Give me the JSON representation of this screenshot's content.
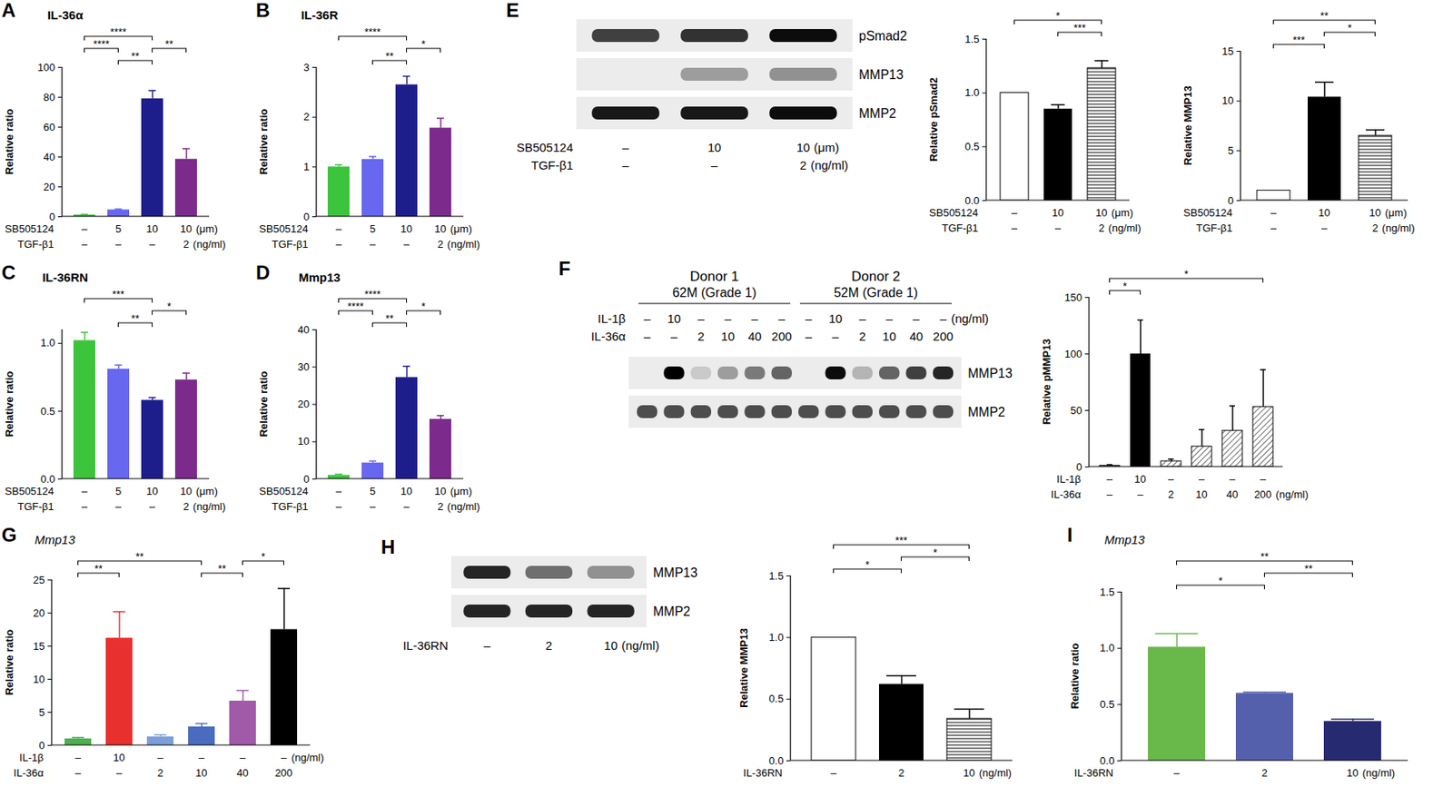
{
  "chart_data": [
    {
      "type": "bar",
      "panel": "A",
      "title": "IL-36α",
      "ylabel": "Relative ratio",
      "categories": [
        null,
        null,
        null,
        null
      ],
      "values": [
        1.2,
        4.6,
        79,
        38.5
      ],
      "errors": [
        0.4,
        0.5,
        5.5,
        7
      ],
      "colors": [
        "#3cc43c",
        "#6767f0",
        "#1d1d8c",
        "#7d2a8d"
      ],
      "ylim": [
        0,
        100
      ],
      "yticks": [
        0,
        20,
        40,
        60,
        80,
        100
      ],
      "tick_labels": "y",
      "conditions": [
        {
          "name": "SB505124",
          "labels": [
            "–",
            "5",
            "10",
            "10"
          ],
          "unit": "(μm)"
        },
        {
          "name": "TGF-β1",
          "labels": [
            "–",
            "–",
            "–",
            "2"
          ],
          "unit": "(ng/ml)"
        }
      ],
      "significance": [
        {
          "from": 0,
          "to": 2,
          "label": "****"
        },
        {
          "from": 1,
          "to": 2,
          "label": "**"
        },
        {
          "from": 0,
          "to": 1,
          "label": "****"
        },
        {
          "from": 2,
          "to": 3,
          "label": "**"
        }
      ]
    },
    {
      "type": "bar",
      "panel": "B",
      "title": "IL-36R",
      "ylabel": "Relative ratio",
      "categories": [
        null,
        null,
        null,
        null
      ],
      "values": [
        1.0,
        1.15,
        2.65,
        1.78
      ],
      "errors": [
        0.04,
        0.06,
        0.17,
        0.2
      ],
      "colors": [
        "#3cc43c",
        "#6767f0",
        "#1d1d8c",
        "#7d2a8d"
      ],
      "ylim": [
        0,
        3
      ],
      "yticks": [
        0,
        1,
        2,
        3
      ],
      "tick_labels": "y",
      "conditions": [
        {
          "name": "SB505124",
          "labels": [
            "–",
            "5",
            "10",
            "10"
          ],
          "unit": "(μm)"
        },
        {
          "name": "TGF-β1",
          "labels": [
            "–",
            "–",
            "–",
            "2"
          ],
          "unit": "(ng/ml)"
        }
      ],
      "significance": [
        {
          "from": 0,
          "to": 2,
          "label": "****"
        },
        {
          "from": 1,
          "to": 2,
          "label": "**"
        },
        {
          "from": 2,
          "to": 3,
          "label": "*"
        }
      ]
    },
    {
      "type": "bar",
      "panel": "C",
      "title": "IL-36RN",
      "ylabel": "Relative ratio",
      "categories": [
        null,
        null,
        null,
        null
      ],
      "values": [
        1.02,
        0.81,
        0.58,
        0.73
      ],
      "errors": [
        0.06,
        0.03,
        0.02,
        0.05
      ],
      "colors": [
        "#3cc43c",
        "#6767f0",
        "#1d1d8c",
        "#7d2a8d"
      ],
      "ylim": [
        0,
        1.1
      ],
      "yticks": [
        {
          "value": 0,
          "label": "0.0"
        },
        0.5,
        {
          "value": 1,
          "label": "1.0"
        }
      ],
      "tick_labels": "y",
      "conditions": [
        {
          "name": "SB505124",
          "labels": [
            "–",
            "5",
            "10",
            "10"
          ],
          "unit": "(μm)"
        },
        {
          "name": "TGF-β1",
          "labels": [
            "–",
            "–",
            "–",
            "2"
          ],
          "unit": "(ng/ml)"
        }
      ],
      "significance": [
        {
          "from": 0,
          "to": 2,
          "label": "***"
        },
        {
          "from": 1,
          "to": 2,
          "label": "**"
        },
        {
          "from": 2,
          "to": 3,
          "label": "*"
        }
      ]
    },
    {
      "type": "bar",
      "panel": "D",
      "title": "Mmp13",
      "ylabel": "Relative ratio",
      "categories": [
        null,
        null,
        null,
        null
      ],
      "values": [
        1,
        4.3,
        27.2,
        16
      ],
      "errors": [
        0.3,
        0.5,
        3,
        1
      ],
      "colors": [
        "#3cc43c",
        "#6767f0",
        "#1d1d8c",
        "#7d2a8d"
      ],
      "ylim": [
        0,
        40
      ],
      "yticks": [
        0,
        10,
        20,
        30,
        40
      ],
      "tick_labels": "y",
      "conditions": [
        {
          "name": "SB505124",
          "labels": [
            "–",
            "5",
            "10",
            "10"
          ],
          "unit": "(μm)"
        },
        {
          "name": "TGF-β1",
          "labels": [
            "–",
            "–",
            "–",
            "2"
          ],
          "unit": "(ng/ml)"
        }
      ],
      "significance": [
        {
          "from": 0,
          "to": 2,
          "label": "****"
        },
        {
          "from": 1,
          "to": 2,
          "label": "**"
        },
        {
          "from": 0,
          "to": 1,
          "label": "****"
        },
        {
          "from": 2,
          "to": 3,
          "label": "*"
        }
      ]
    },
    {
      "type": "blot",
      "panel": "E",
      "conditions": [
        {
          "name": "SB505124",
          "labels": [
            "–",
            "10",
            "10"
          ],
          "unit": "(μm)"
        },
        {
          "name": "TGF-β1",
          "labels": [
            "–",
            "–",
            "2"
          ],
          "unit": "(ng/ml)"
        }
      ],
      "bands": [
        {
          "name": "pSmad2",
          "levels": [
            0.75,
            0.8,
            0.95
          ]
        },
        {
          "name": "MMP13",
          "levels": [
            0,
            0.35,
            0.4
          ]
        },
        {
          "name": "MMP2",
          "levels": [
            0.9,
            0.9,
            0.95
          ]
        }
      ]
    },
    {
      "type": "bar",
      "panel": "E",
      "ylabel": "Relative pSmad2",
      "categories": [
        null,
        null,
        null
      ],
      "values": [
        1.0,
        0.85,
        1.23
      ],
      "errors": [
        0,
        0.04,
        0.07
      ],
      "colors": [
        "#ffffff",
        "#000000",
        "striped"
      ],
      "ylim": [
        0,
        1.5
      ],
      "yticks": [
        {
          "value": 0,
          "label": "0.0"
        },
        0.5,
        {
          "value": 1,
          "label": "1.0"
        },
        1.5
      ],
      "tick_labels": "y",
      "conditions": [
        {
          "name": "SB505124",
          "labels": [
            "–",
            "10",
            "10"
          ],
          "unit": "(μm)"
        },
        {
          "name": "TGF-β1",
          "labels": [
            "–",
            "–",
            "2"
          ],
          "unit": "(ng/ml)"
        }
      ],
      "significance": [
        {
          "from": 0,
          "to": 2,
          "label": "*"
        },
        {
          "from": 1,
          "to": 2,
          "label": "***"
        }
      ]
    },
    {
      "type": "bar",
      "panel": "E",
      "ylabel": "Relative MMP13",
      "categories": [
        null,
        null,
        null
      ],
      "values": [
        1,
        10.4,
        6.5
      ],
      "errors": [
        0,
        1.5,
        0.6
      ],
      "colors": [
        "#ffffff",
        "#000000",
        "striped"
      ],
      "ylim": [
        0,
        15
      ],
      "yticks": [
        0,
        5,
        10,
        15
      ],
      "tick_labels": "y",
      "conditions": [
        {
          "name": "SB505124",
          "labels": [
            "–",
            "10",
            "10"
          ],
          "unit": "(μm)"
        },
        {
          "name": "TGF-β1",
          "labels": [
            "–",
            "–",
            "2"
          ],
          "unit": "(ng/ml)"
        }
      ],
      "significance": [
        {
          "from": 0,
          "to": 2,
          "label": "**"
        },
        {
          "from": 0,
          "to": 1,
          "label": "***"
        },
        {
          "from": 1,
          "to": 2,
          "label": "*"
        }
      ]
    },
    {
      "type": "blot",
      "panel": "F",
      "groups": [
        {
          "label": "Donor 1",
          "sublabel": "62M (Grade 1)"
        },
        {
          "label": "Donor 2",
          "sublabel": "52M (Grade 1)"
        }
      ],
      "conditions": [
        {
          "name": "IL-1β",
          "labels": [
            "–",
            "10",
            "–",
            "–",
            "–",
            "–",
            "–",
            "10",
            "–",
            "–",
            "–",
            "–"
          ],
          "unit": "(ng/ml)"
        },
        {
          "name": "IL-36α",
          "labels": [
            "–",
            "–",
            "2",
            "10",
            "40",
            "200",
            "–",
            "–",
            "2",
            "10",
            "40",
            "200"
          ]
        }
      ],
      "bands": [
        {
          "name": "MMP13",
          "levels": [
            0,
            1.0,
            0.15,
            0.35,
            0.5,
            0.6,
            0,
            0.95,
            0.25,
            0.6,
            0.75,
            0.85
          ]
        },
        {
          "name": "MMP2",
          "levels": [
            0.7,
            0.7,
            0.7,
            0.7,
            0.7,
            0.7,
            0.7,
            0.7,
            0.7,
            0.7,
            0.7,
            0.7
          ]
        }
      ]
    },
    {
      "type": "bar",
      "panel": "F",
      "ylabel": "Relative pMMP13",
      "categories": [
        null,
        null,
        null,
        null,
        null,
        null
      ],
      "values": [
        1,
        100,
        5,
        18,
        32,
        53
      ],
      "errors": [
        1,
        30,
        2,
        15,
        22,
        33
      ],
      "colors": [
        "#ffffff",
        "#000000",
        "hatched",
        "hatched",
        "hatched",
        "hatched"
      ],
      "ylim": [
        0,
        150
      ],
      "yticks": [
        0,
        50,
        100,
        150
      ],
      "tick_labels": "y",
      "conditions": [
        {
          "name": "IL-1β",
          "labels": [
            "–",
            "10",
            "–",
            "–",
            "–",
            "–"
          ]
        },
        {
          "name": "IL-36α",
          "labels": [
            "–",
            "–",
            "2",
            "10",
            "40",
            "200"
          ],
          "unit": "(ng/ml)"
        }
      ],
      "significance": [
        {
          "from": 0,
          "to": 1,
          "label": "*"
        },
        {
          "from": 0,
          "to": 5,
          "label": "*"
        }
      ]
    },
    {
      "type": "bar",
      "panel": "G",
      "title": "Mmp13",
      "ylabel": "Relative ratio",
      "categories": [
        null,
        null,
        null,
        null,
        null,
        null
      ],
      "values": [
        1,
        16.2,
        1.3,
        2.8,
        6.7,
        17.5
      ],
      "errors": [
        0.2,
        4,
        0.3,
        0.5,
        1.6,
        6.2
      ],
      "colors": [
        "#4caf50",
        "#e8302f",
        "#7b9fd8",
        "#4a6cc0",
        "#a05aa8",
        "#000000"
      ],
      "ylim": [
        0,
        25
      ],
      "yticks": [
        0,
        5,
        10,
        15,
        20,
        25
      ],
      "tick_labels": "y",
      "conditions": [
        {
          "name": "IL-1β",
          "labels": [
            "–",
            "10",
            "–",
            "–",
            "–",
            "–"
          ],
          "unit": "(ng/ml)"
        },
        {
          "name": "IL-36α",
          "labels": [
            "–",
            "–",
            "2",
            "10",
            "40",
            "200"
          ]
        }
      ],
      "significance": [
        {
          "from": 0,
          "to": 1,
          "label": "**"
        },
        {
          "from": 0,
          "to": 3,
          "label": "**"
        },
        {
          "from": 3,
          "to": 4,
          "label": "**"
        },
        {
          "from": 4,
          "to": 5,
          "label": "*"
        }
      ]
    },
    {
      "type": "blot",
      "panel": "H",
      "conditions": [
        {
          "name": "IL-36RN",
          "labels": [
            "–",
            "2",
            "10"
          ],
          "unit": "(ng/ml)"
        }
      ],
      "bands": [
        {
          "name": "MMP13",
          "levels": [
            0.85,
            0.55,
            0.4
          ]
        },
        {
          "name": "MMP2",
          "levels": [
            0.85,
            0.85,
            0.85
          ]
        }
      ]
    },
    {
      "type": "bar",
      "panel": "H",
      "ylabel": "Relative MMP13",
      "categories": [
        null,
        null,
        null
      ],
      "values": [
        1,
        0.62,
        0.34
      ],
      "errors": [
        0,
        0.07,
        0.08
      ],
      "colors": [
        "#ffffff",
        "#000000",
        "striped"
      ],
      "ylim": [
        0,
        1.5
      ],
      "yticks": [
        {
          "value": 0,
          "label": "0.0"
        },
        0.5,
        {
          "value": 1,
          "label": "1.0"
        },
        1.5
      ],
      "tick_labels": "y",
      "conditions": [
        {
          "name": "IL-36RN",
          "labels": [
            "–",
            "2",
            "10"
          ],
          "unit": "(ng/ml)"
        }
      ],
      "significance": [
        {
          "from": 0,
          "to": 2,
          "label": "***"
        },
        {
          "from": 0,
          "to": 1,
          "label": "*"
        },
        {
          "from": 1,
          "to": 2,
          "label": "*"
        }
      ]
    },
    {
      "type": "bar",
      "panel": "I",
      "title": "Mmp13",
      "ylabel": "Relative ratio",
      "categories": [
        null,
        null,
        null
      ],
      "values": [
        1.01,
        0.6,
        0.35
      ],
      "errors": [
        0.12,
        0.01,
        0.02
      ],
      "colors": [
        "#69b84a",
        "#5560ad",
        "#262a70"
      ],
      "ylim": [
        0,
        1.5
      ],
      "yticks": [
        {
          "value": 0,
          "label": "0.0"
        },
        0.5,
        {
          "value": 1,
          "label": "1.0"
        },
        1.5
      ],
      "tick_labels": "y",
      "conditions": [
        {
          "name": "IL-36RN",
          "labels": [
            "–",
            "2",
            "10"
          ],
          "unit": "(ng/ml)"
        }
      ],
      "significance": [
        {
          "from": 0,
          "to": 2,
          "label": "**"
        },
        {
          "from": 0,
          "to": 1,
          "label": "*"
        },
        {
          "from": 1,
          "to": 2,
          "label": "**"
        }
      ]
    }
  ]
}
